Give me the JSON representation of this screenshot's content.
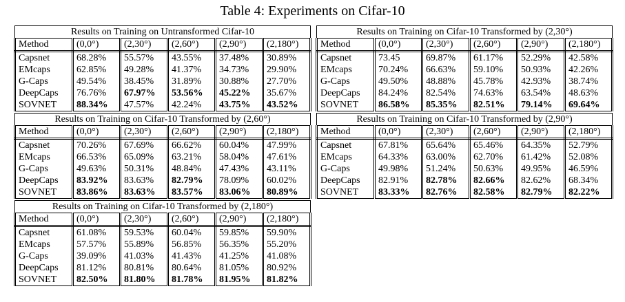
{
  "title": "Table 4: Experiments on Cifar-10",
  "tables": [
    {
      "caption": "Results on Training on Untransformed Cifar-10",
      "header": [
        "Method",
        "(0,0°)",
        "(2,30°)",
        "(2,60°)",
        "(2,90°)",
        "(2,180°)"
      ],
      "rows": [
        [
          "Capsnet",
          "68.28%",
          "55.57%",
          "43.55%",
          "37.48%",
          "30.89%"
        ],
        [
          "EMcaps",
          "62.85%",
          "49.28%",
          "41.37%",
          "34.73%",
          "29.90%"
        ],
        [
          "G-Caps",
          "49.54%",
          "38.45%",
          "31.89%",
          "30.88%",
          "27.70%"
        ],
        [
          "DeepCaps",
          "76.76%",
          "67.97%",
          "53.56%",
          "45.22%",
          "35.67%"
        ],
        [
          "SOVNET",
          "88.34%",
          "47.57%",
          "42.24%",
          "43.75%",
          "43.52%"
        ]
      ],
      "bold": [
        [
          false,
          false,
          false,
          false,
          false,
          false
        ],
        [
          false,
          false,
          false,
          false,
          false,
          false
        ],
        [
          false,
          false,
          false,
          false,
          false,
          false
        ],
        [
          false,
          false,
          true,
          true,
          true,
          false
        ],
        [
          false,
          true,
          false,
          false,
          true,
          true
        ]
      ]
    },
    {
      "caption": "Results on Training on Cifar-10 Transformed by (2,30°)",
      "header": [
        "Method",
        "(0,0°)",
        "(2,30°)",
        "(2,60°)",
        "(2,90°)",
        "(2,180°)"
      ],
      "rows": [
        [
          "Capsnet",
          "73.45",
          "69.87%",
          "61.17%",
          "52.29%",
          "42.58%"
        ],
        [
          "EMcaps",
          "70.24%",
          "66.63%",
          "59.10%",
          "50.93%",
          "42.26%"
        ],
        [
          "G-Caps",
          "49.50%",
          "48.88%",
          "45.78%",
          "42.93%",
          "38.74%"
        ],
        [
          "DeepCaps",
          "84.24%",
          "82.54%",
          "74.63%",
          "63.54%",
          "48.63%"
        ],
        [
          "SOVNET",
          "86.58%",
          "85.35%",
          "82.51%",
          "79.14%",
          "69.64%"
        ]
      ],
      "bold": [
        [
          false,
          false,
          false,
          false,
          false,
          false
        ],
        [
          false,
          false,
          false,
          false,
          false,
          false
        ],
        [
          false,
          false,
          false,
          false,
          false,
          false
        ],
        [
          false,
          false,
          false,
          false,
          false,
          false
        ],
        [
          false,
          true,
          true,
          true,
          true,
          true
        ]
      ]
    },
    {
      "caption": "Results on Training on Cifar-10 Transformed by (2,60°)",
      "header": [
        "Method",
        "(0,0°)",
        "(2,30°)",
        "(2,60°)",
        "(2,90°)",
        "(2,180°)"
      ],
      "rows": [
        [
          "Capsnet",
          "70.26%",
          "67.69%",
          "66.62%",
          "60.04%",
          "47.99%"
        ],
        [
          "EMcaps",
          "66.53%",
          "65.09%",
          "63.21%",
          "58.04%",
          "47.61%"
        ],
        [
          "G-Caps",
          "49.63%",
          "50.31%",
          "48.84%",
          "47.43%",
          "43.11%"
        ],
        [
          "DeepCaps",
          "83.92%",
          "83.63%",
          "82.79%",
          "78.09%",
          "60.02%"
        ],
        [
          "SOVNET",
          "83.86%",
          "83.63%",
          "83.57%",
          "83.06%",
          "80.89%"
        ]
      ],
      "bold": [
        [
          false,
          false,
          false,
          false,
          false,
          false
        ],
        [
          false,
          false,
          false,
          false,
          false,
          false
        ],
        [
          false,
          false,
          false,
          false,
          false,
          false
        ],
        [
          false,
          true,
          false,
          true,
          false,
          false
        ],
        [
          false,
          true,
          true,
          true,
          true,
          true
        ]
      ]
    },
    {
      "caption": "Results on Training on Cifar-10 Transformed by (2,90°)",
      "header": [
        "Method",
        "(0,0°)",
        "(2,30°)",
        "(2,60°)",
        "(2,90°)",
        "(2,180°)"
      ],
      "rows": [
        [
          "Capsnet",
          "67.81%",
          "65.64%",
          "65.46%",
          "64.35%",
          "52.79%"
        ],
        [
          "EMcaps",
          "64.33%",
          "63.00%",
          "62.70%",
          "61.42%",
          "52.08%"
        ],
        [
          "G-Caps",
          "49.98%",
          "51.24%",
          "50.63%",
          "49.95%",
          "46.59%"
        ],
        [
          "DeepCaps",
          "82.91%",
          "82.78%",
          "82.66%",
          "82.62%",
          "68.34%"
        ],
        [
          "SOVNET",
          "83.33%",
          "82.76%",
          "82.58%",
          "82.79%",
          "82.22%"
        ]
      ],
      "bold": [
        [
          false,
          false,
          false,
          false,
          false,
          false
        ],
        [
          false,
          false,
          false,
          false,
          false,
          false
        ],
        [
          false,
          false,
          false,
          false,
          false,
          false
        ],
        [
          false,
          false,
          true,
          true,
          false,
          false
        ],
        [
          false,
          true,
          true,
          true,
          true,
          true
        ]
      ]
    },
    {
      "caption": "Results on Training on Cifar-10 Transformed by (2,180°)",
      "header": [
        "Method",
        "(0,0°)",
        "(2,30°)",
        "(2,60°)",
        "(2,90°)",
        "(2,180°)"
      ],
      "rows": [
        [
          "Capsnet",
          "61.08%",
          "59.53%",
          "60.04%",
          "59.85%",
          "59.90%"
        ],
        [
          "EMcaps",
          "57.57%",
          "55.89%",
          "56.85%",
          "56.35%",
          "55.20%"
        ],
        [
          "G-Caps",
          "39.09%",
          "41.03%",
          "41.43%",
          "41.25%",
          "41.08%"
        ],
        [
          "DeepCaps",
          "81.12%",
          "80.81%",
          "80.64%",
          "81.05%",
          "80.92%"
        ],
        [
          "SOVNET",
          "82.50%",
          "81.80%",
          "81.78%",
          "81.95%",
          "81.82%"
        ]
      ],
      "bold": [
        [
          false,
          false,
          false,
          false,
          false,
          false
        ],
        [
          false,
          false,
          false,
          false,
          false,
          false
        ],
        [
          false,
          false,
          false,
          false,
          false,
          false
        ],
        [
          false,
          false,
          false,
          false,
          false,
          false
        ],
        [
          false,
          true,
          true,
          true,
          true,
          true
        ]
      ]
    }
  ]
}
